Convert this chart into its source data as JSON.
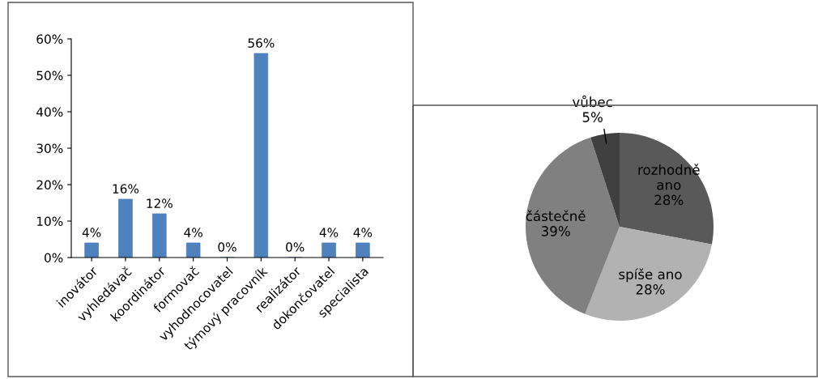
{
  "chart_data": [
    {
      "type": "bar",
      "categories": [
        "inovátor",
        "vyhledávač",
        "koordinátor",
        "formovač",
        "vyhodnocovatel",
        "týmový pracovník",
        "realizátor",
        "dokončovatel",
        "specialista"
      ],
      "values": [
        4,
        16,
        12,
        4,
        0,
        56,
        0,
        4,
        4
      ],
      "value_labels": [
        "4%",
        "16%",
        "12%",
        "4%",
        "0%",
        "56%",
        "0%",
        "4%",
        "4%"
      ],
      "color": "#4f81bd",
      "ylim": [
        0,
        60
      ],
      "yticks": [
        {
          "value": 0,
          "label": "0%"
        },
        {
          "value": 10,
          "label": "10%"
        },
        {
          "value": 20,
          "label": "20%"
        },
        {
          "value": 30,
          "label": "30%"
        },
        {
          "value": 40,
          "label": "40%"
        },
        {
          "value": 50,
          "label": "50%"
        },
        {
          "value": 60,
          "label": "60%"
        }
      ],
      "grid": false,
      "legend": false
    },
    {
      "type": "pie",
      "categories": [
        "rozhodně ano",
        "spíše ano",
        "částečně",
        "vůbec"
      ],
      "values": [
        28,
        28,
        39,
        5
      ],
      "value_labels": [
        "28%",
        "28%",
        "39%",
        "5%"
      ],
      "colors": [
        "#595959",
        "#b2b2b2",
        "#808080",
        "#404040"
      ],
      "legend": false
    }
  ]
}
